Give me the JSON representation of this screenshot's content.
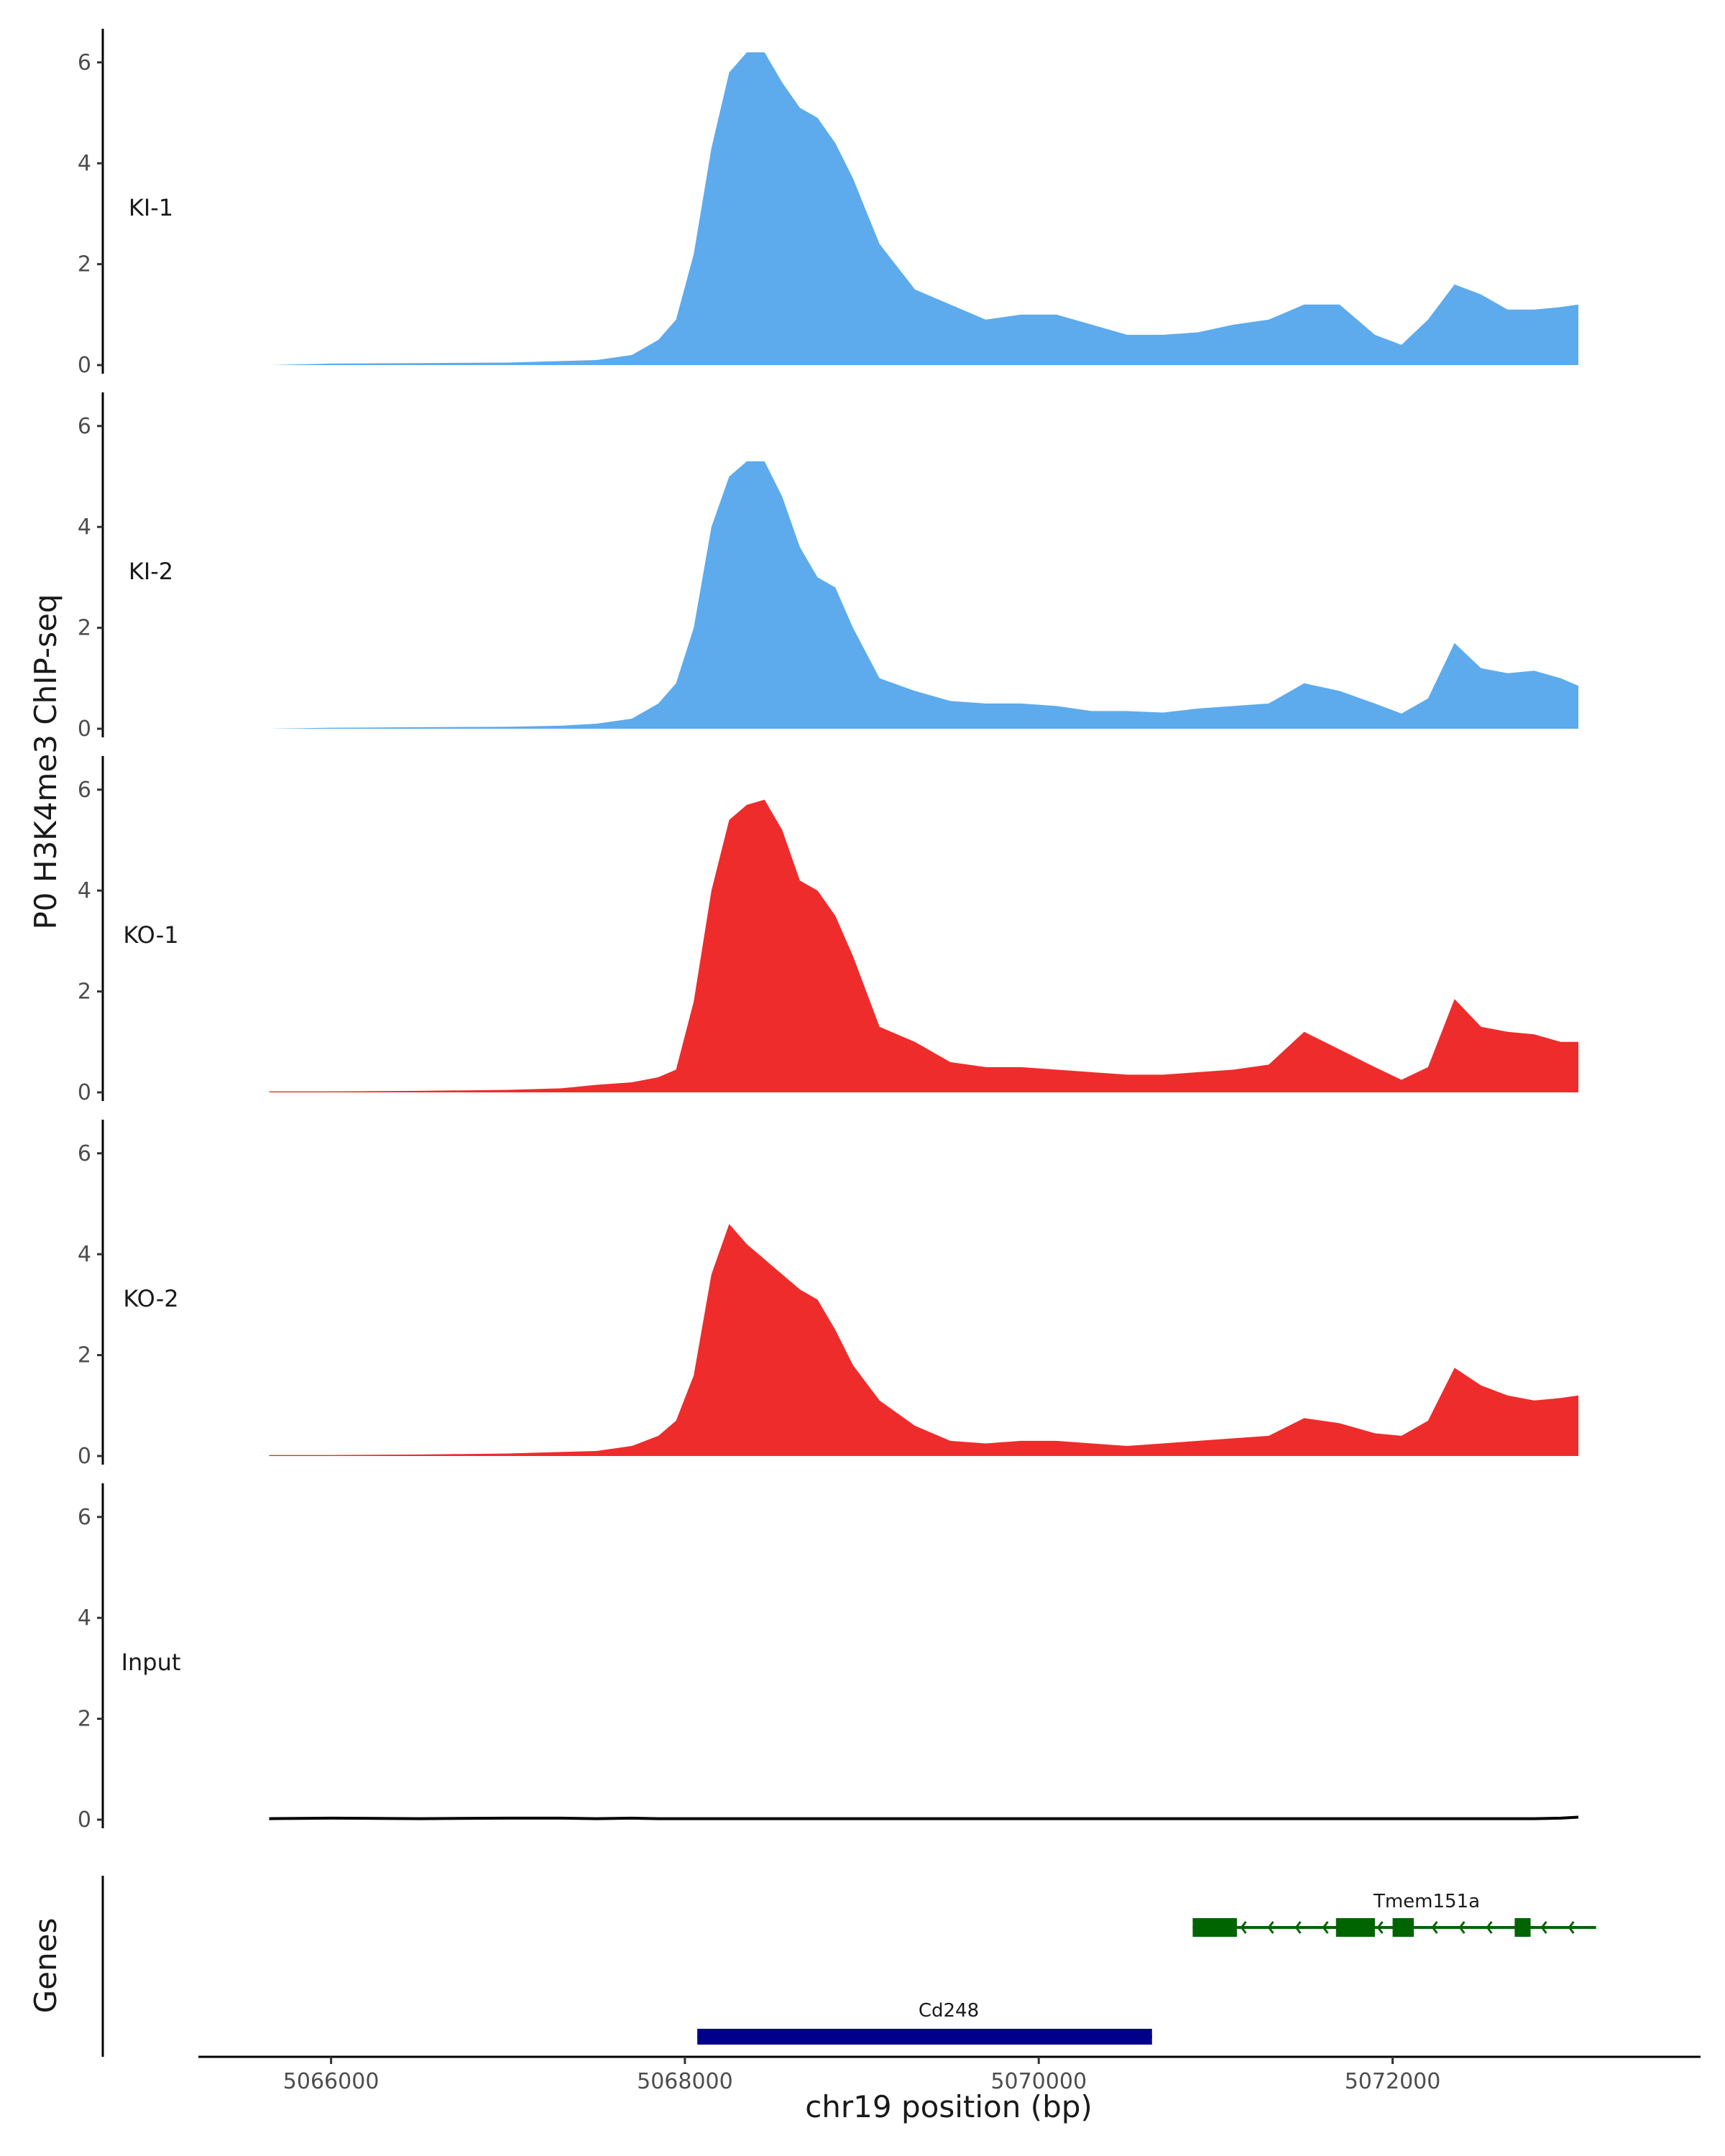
{
  "chart_data": {
    "type": "area",
    "ylabel": "P0 H3K4me3 ChIP-seq",
    "xlabel": "chr19 position (bp)",
    "genes_label": "Genes",
    "xlim": [
      5065250,
      5073700
    ],
    "ylim": [
      0,
      6.5
    ],
    "y_ticks": [
      0,
      2,
      4,
      6
    ],
    "x_ticks": [
      5066000,
      5068000,
      5070000,
      5072000
    ],
    "x_tick_labels": [
      "5066000",
      "5068000",
      "5070000",
      "5072000"
    ],
    "colors": {
      "KI": "#5DABEC",
      "KO": "#EE2C2C",
      "Input": "#000000",
      "Tmem151a": "#006400",
      "Cd248": "#00008B"
    },
    "x": [
      5065650,
      5066000,
      5066500,
      5067000,
      5067300,
      5067500,
      5067700,
      5067850,
      5067950,
      5068050,
      5068150,
      5068250,
      5068350,
      5068450,
      5068550,
      5068650,
      5068750,
      5068850,
      5068950,
      5069100,
      5069300,
      5069500,
      5069700,
      5069900,
      5070100,
      5070300,
      5070500,
      5070700,
      5070900,
      5071100,
      5071300,
      5071500,
      5071700,
      5071900,
      5072050,
      5072200,
      5072350,
      5072500,
      5072650,
      5072800,
      5072950,
      5073050
    ],
    "series": [
      {
        "name": "KI-1",
        "color": "#5DABEC",
        "values": [
          0,
          0.03,
          0.04,
          0.05,
          0.08,
          0.1,
          0.2,
          0.5,
          0.9,
          2.2,
          4.3,
          5.8,
          6.2,
          6.2,
          5.6,
          5.1,
          4.9,
          4.4,
          3.7,
          2.4,
          1.5,
          1.2,
          0.9,
          1.0,
          1.0,
          0.8,
          0.6,
          0.6,
          0.65,
          0.8,
          0.9,
          1.2,
          1.2,
          0.6,
          0.4,
          0.9,
          1.6,
          1.4,
          1.1,
          1.1,
          1.15,
          1.2
        ]
      },
      {
        "name": "KI-2",
        "color": "#5DABEC",
        "values": [
          0,
          0.02,
          0.03,
          0.04,
          0.06,
          0.1,
          0.2,
          0.5,
          0.9,
          2.0,
          4.0,
          5.0,
          5.3,
          5.3,
          4.6,
          3.6,
          3.0,
          2.8,
          2.0,
          1.0,
          0.75,
          0.55,
          0.5,
          0.5,
          0.45,
          0.35,
          0.35,
          0.32,
          0.4,
          0.45,
          0.5,
          0.9,
          0.75,
          0.5,
          0.3,
          0.6,
          1.7,
          1.2,
          1.1,
          1.15,
          1.0,
          0.85
        ]
      },
      {
        "name": "KO-1",
        "color": "#EE2C2C",
        "values": [
          0.02,
          0.02,
          0.03,
          0.05,
          0.08,
          0.15,
          0.2,
          0.3,
          0.45,
          1.8,
          4.0,
          5.4,
          5.7,
          5.8,
          5.2,
          4.2,
          4.0,
          3.5,
          2.7,
          1.3,
          1.0,
          0.6,
          0.5,
          0.5,
          0.45,
          0.4,
          0.35,
          0.35,
          0.4,
          0.45,
          0.55,
          1.2,
          0.85,
          0.5,
          0.25,
          0.5,
          1.85,
          1.3,
          1.2,
          1.15,
          1.0,
          1.0
        ]
      },
      {
        "name": "KO-2",
        "color": "#EE2C2C",
        "values": [
          0.02,
          0.02,
          0.03,
          0.05,
          0.08,
          0.1,
          0.2,
          0.4,
          0.7,
          1.6,
          3.6,
          4.6,
          4.2,
          3.9,
          3.6,
          3.3,
          3.1,
          2.5,
          1.8,
          1.1,
          0.6,
          0.3,
          0.25,
          0.3,
          0.3,
          0.25,
          0.2,
          0.25,
          0.3,
          0.35,
          0.4,
          0.75,
          0.65,
          0.45,
          0.4,
          0.7,
          1.75,
          1.4,
          1.2,
          1.1,
          1.15,
          1.2
        ]
      },
      {
        "name": "Input",
        "color": "#000000",
        "values": [
          0.02,
          0.03,
          0.02,
          0.03,
          0.03,
          0.02,
          0.03,
          0.02,
          0.02,
          0.02,
          0.02,
          0.02,
          0.02,
          0.02,
          0.02,
          0.02,
          0.02,
          0.02,
          0.02,
          0.02,
          0.02,
          0.02,
          0.02,
          0.02,
          0.02,
          0.02,
          0.02,
          0.02,
          0.02,
          0.02,
          0.02,
          0.02,
          0.02,
          0.02,
          0.02,
          0.02,
          0.02,
          0.02,
          0.02,
          0.02,
          0.03,
          0.05
        ]
      }
    ],
    "genes": [
      {
        "name": "Tmem151a",
        "color": "#006400",
        "strand": "-",
        "start": 5070870,
        "end": 5073150,
        "exons": [
          [
            5070870,
            5071120
          ],
          [
            5071680,
            5071900
          ],
          [
            5072000,
            5072120
          ],
          [
            5072690,
            5072780
          ]
        ]
      },
      {
        "name": "Cd248",
        "color": "#00008B",
        "strand": "+",
        "start": 5068070,
        "end": 5070640,
        "exons": [
          [
            5068070,
            5070640
          ]
        ]
      }
    ]
  }
}
